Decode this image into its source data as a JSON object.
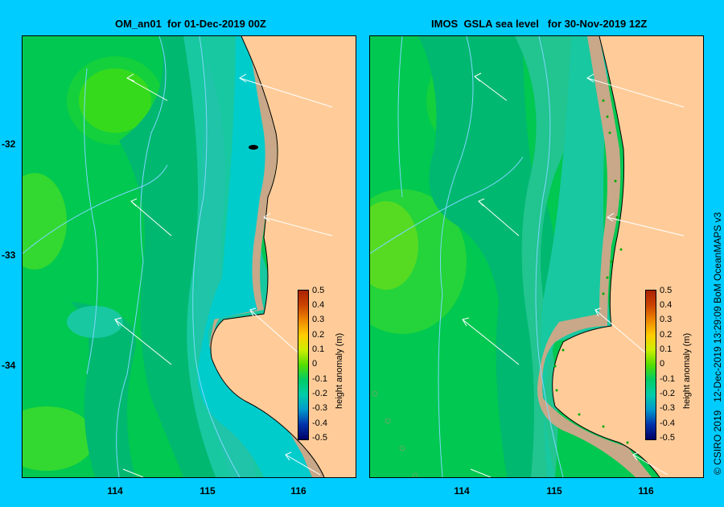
{
  "left_title": "OM_an01  for 01-Dec-2019 00Z",
  "right_title": "IMOS  GSLA sea level   for 30-Nov-2019 12Z",
  "y_ticks": [
    "-32",
    "-33",
    "-34"
  ],
  "x_ticks": [
    "114",
    "115",
    "116"
  ],
  "colorbar": {
    "title": "height anomaly (m)",
    "labels": [
      "0.5",
      "0.4",
      "0.3",
      "0.2",
      "0.1",
      "0",
      "-0.1",
      "-0.2",
      "-0.3",
      "-0.4",
      "-0.5"
    ]
  },
  "credit": "© CSIRO 2019   12-Dec-2019 13:29:09 BoM OceanMAPS v3",
  "colors": {
    "background": "#00ccff",
    "land": "#ffcc99",
    "shelf": "#c8a888",
    "green_base": "#00cc55"
  }
}
